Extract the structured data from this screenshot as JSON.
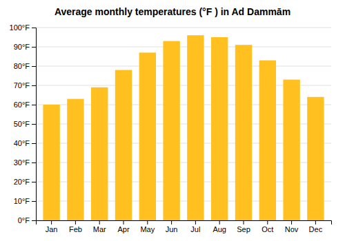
{
  "chart_data": {
    "type": "bar",
    "title": "Average monthly temperatures (°F ) in Ad Dammām",
    "categories": [
      "Jan",
      "Feb",
      "Mar",
      "Apr",
      "May",
      "Jun",
      "Jul",
      "Aug",
      "Sep",
      "Oct",
      "Nov",
      "Dec"
    ],
    "values": [
      60,
      63,
      69,
      78,
      87,
      93,
      96,
      95,
      91,
      83,
      73,
      64
    ],
    "color": "#FFC020",
    "ylim": [
      0,
      100
    ],
    "yticks": [
      {
        "value": 0,
        "label": "0°F"
      },
      {
        "value": 10,
        "label": "10°F"
      },
      {
        "value": 20,
        "label": "20°F"
      },
      {
        "value": 30,
        "label": "30°F"
      },
      {
        "value": 40,
        "label": "40°F"
      },
      {
        "value": 50,
        "label": "50°F"
      },
      {
        "value": 60,
        "label": "60°F"
      },
      {
        "value": 70,
        "label": "70°F"
      },
      {
        "value": 80,
        "label": "80°F"
      },
      {
        "value": 90,
        "label": "90°F"
      },
      {
        "value": 100,
        "label": "100°F"
      }
    ],
    "grid": true
  }
}
